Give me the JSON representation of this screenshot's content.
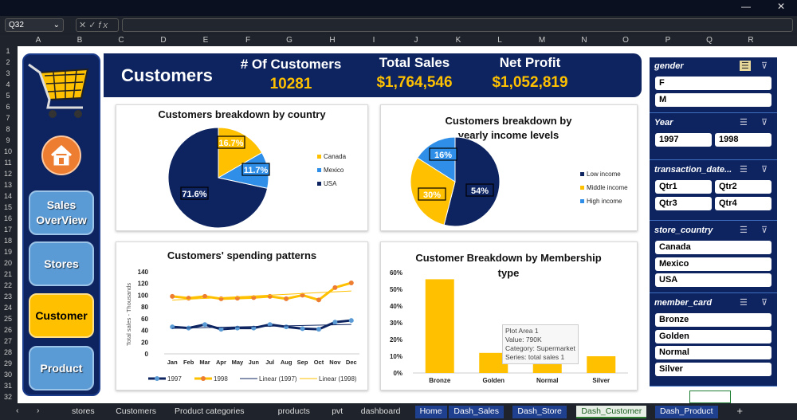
{
  "excel": {
    "name_box": "Q32",
    "fx": "fx",
    "columns": [
      "A",
      "B",
      "C",
      "D",
      "E",
      "F",
      "G",
      "H",
      "I",
      "J",
      "K",
      "L",
      "M",
      "N",
      "O",
      "P",
      "Q",
      "R"
    ],
    "rows": 32
  },
  "nav": {
    "sales": "Sales OverView",
    "stores": "Stores",
    "customer": "Customer",
    "product": "Product"
  },
  "header": {
    "title": "Customers",
    "kpis": [
      {
        "label": "# Of Customers",
        "value": "10281"
      },
      {
        "label": "Total Sales",
        "value": "$1,764,546"
      },
      {
        "label": "Net Profit",
        "value": "$1,052,819"
      }
    ]
  },
  "colors": {
    "navy": "#0d2461",
    "yellow": "#ffc000",
    "lightblue": "#2f8fe8",
    "orange": "#ed7d31"
  },
  "chart_data": [
    {
      "type": "pie",
      "title": "Customers breakdown by country",
      "labels": [
        "Canada",
        "Mexico",
        "USA"
      ],
      "values": [
        16.7,
        11.7,
        71.6
      ],
      "data_labels": [
        "16.7%",
        "11.7%",
        "71.6%"
      ],
      "legend": "right"
    },
    {
      "type": "pie",
      "title": "Customers breakdown by yearly income levels",
      "labels": [
        "Low income",
        "Middle income",
        "High income"
      ],
      "values": [
        54,
        30,
        16
      ],
      "data_labels": [
        "54%",
        "30%",
        "16%"
      ],
      "legend": "right"
    },
    {
      "type": "line",
      "title": "Customers' spending patterns",
      "ylabel": "Total sales - Thousands",
      "ylim": [
        0,
        140
      ],
      "yticks": [
        "0",
        "20",
        "40",
        "60",
        "80",
        "100",
        "120",
        "140"
      ],
      "categories": [
        "Jan",
        "Feb",
        "Mar",
        "Apr",
        "May",
        "Jun",
        "Jul",
        "Aug",
        "Sep",
        "Oct",
        "Nov",
        "Dec"
      ],
      "series": [
        {
          "name": "1997",
          "values": [
            46,
            44,
            50,
            42,
            44,
            44,
            50,
            46,
            43,
            42,
            54,
            57
          ]
        },
        {
          "name": "1998",
          "values": [
            98,
            95,
            98,
            94,
            95,
            96,
            98,
            94,
            100,
            92,
            113,
            121
          ]
        }
      ],
      "trendlines": [
        "Linear (1997)",
        "Linear (1998)"
      ],
      "legend": "bottom"
    },
    {
      "type": "bar",
      "title": "Customer Breakdown by Membership type",
      "categories": [
        "Bronze",
        "Golden",
        "Normal",
        "Silver"
      ],
      "values": [
        56,
        12,
        9,
        10
      ],
      "ylim": [
        0,
        60
      ],
      "yticks": [
        "0%",
        "10%",
        "20%",
        "30%",
        "40%",
        "50%",
        "60%"
      ],
      "tooltip": [
        "Plot Area  1",
        "Value: 790K",
        "Category: Supermarket",
        "Series: total sales 1"
      ]
    }
  ],
  "slicers": [
    {
      "title": "gender",
      "items": [
        "F",
        "M"
      ]
    },
    {
      "title": "Year",
      "items": [
        "1997",
        "1998"
      ]
    },
    {
      "title": "transaction_date...",
      "items": [
        "Qtr1",
        "Qtr2",
        "Qtr3",
        "Qtr4"
      ]
    },
    {
      "title": "store_country",
      "items": [
        "Canada",
        "Mexico",
        "USA"
      ]
    },
    {
      "title": "member_card",
      "items": [
        "Bronze",
        "Golden",
        "Normal",
        "Silver"
      ]
    }
  ],
  "sheet_tabs": [
    "stores",
    "Customers",
    "Product categories",
    "products",
    "pvt",
    "dashboard",
    "Home",
    "Dash_Sales",
    "Dash_Store",
    "Dash_Customer",
    "Dash_Product"
  ],
  "add_sheet": "+"
}
